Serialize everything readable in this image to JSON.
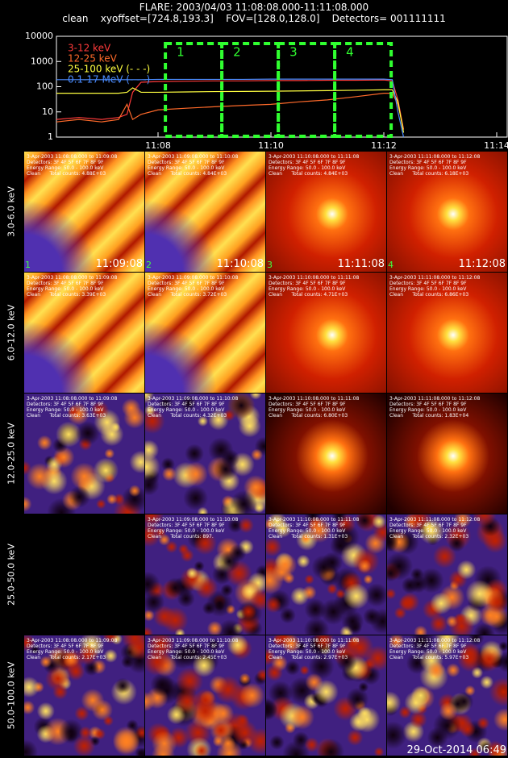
{
  "header": {
    "line1": "FLARE: 2003/04/03 11:08:08.000-11:11:08.000",
    "line2": "clean    xyoffset=[724.8,193.3]    FOV=[128.0,128.0]    Detectors= 001111111"
  },
  "chart_data": {
    "type": "line",
    "log_y": true,
    "x": [
      6.2,
      6.6,
      7.0,
      7.3,
      7.45,
      7.55,
      7.7,
      8.0,
      8.5,
      9.0,
      9.5,
      10.0,
      10.5,
      11.0,
      11.5,
      12.0,
      12.15,
      12.25,
      12.35
    ],
    "xlim": [
      6.2,
      14.2
    ],
    "xticks": [
      {
        "value": 8,
        "label": "11:08"
      },
      {
        "value": 10,
        "label": "11:10"
      },
      {
        "value": 12,
        "label": "11:12"
      },
      {
        "value": 14,
        "label": "11:14"
      }
    ],
    "ylim": [
      1,
      10000
    ],
    "yticks": [
      1,
      10,
      100,
      1000,
      10000
    ],
    "series": [
      {
        "name": "3-12 keV",
        "color": "#ff3a3a",
        "values": [
          5,
          6,
          5,
          6,
          8,
          60,
          150,
          160,
          165,
          170,
          170,
          175,
          175,
          180,
          180,
          185,
          170,
          30,
          2
        ]
      },
      {
        "name": "12-25 keV",
        "color": "#ff6a2a",
        "values": [
          4,
          5,
          4,
          5,
          20,
          5,
          8,
          12,
          14,
          16,
          18,
          20,
          25,
          30,
          40,
          55,
          55,
          20,
          2
        ]
      },
      {
        "name": "25-100 keV (- - -)",
        "color": "#ffff40",
        "values": [
          55,
          55,
          55,
          55,
          60,
          90,
          60,
          60,
          62,
          64,
          65,
          66,
          68,
          70,
          72,
          75,
          75,
          25,
          1.5
        ]
      },
      {
        "name": "0.1-17 MeV (- - -)",
        "color": "#4a8cff",
        "values": [
          190,
          190,
          190,
          190,
          190,
          190,
          190,
          195,
          195,
          195,
          195,
          200,
          200,
          200,
          200,
          200,
          190,
          10,
          1
        ]
      }
    ],
    "intervals": [
      {
        "label": "1",
        "start": 8.13,
        "end": 9.13
      },
      {
        "label": "2",
        "start": 9.13,
        "end": 10.13
      },
      {
        "label": "3",
        "start": 10.13,
        "end": 11.13
      },
      {
        "label": "4",
        "start": 11.13,
        "end": 12.13
      }
    ]
  },
  "panels": [
    {
      "label": "3.0-6.0 keV",
      "cells": [
        {
          "lines": [
            "3-Apr-2003 11:08:08.000 to 11:09:08",
            "Detectors: 3F 4F 5F 6F 7F 8F 9F",
            "Energy Range: 50.0 - 100.0 keV",
            "Clean      Total counts: 4.88E+03"
          ],
          "time": "11:09:08",
          "index": "1"
        },
        {
          "lines": [
            "3-Apr-2003 11:09:08.000 to 11:10:08",
            "Detectors: 3F 4F 5F 6F 7F 8F 9F",
            "Energy Range: 50.0 - 100.0 keV",
            "Clean      Total counts: 4.84E+03"
          ],
          "time": "11:10:08",
          "index": "2"
        },
        {
          "lines": [
            "3-Apr-2003 11:10:08.000 to 11:11:08",
            "Detectors: 3F 4F 5F 6F 7F 8F 9F",
            "Energy Range: 50.0 - 100.0 keV",
            "Clean      Total counts: 4.84E+03"
          ],
          "time": "11:11:08",
          "index": "3"
        },
        {
          "lines": [
            "3-Apr-2003 11:11:08.000 to 11:12:08",
            "Detectors: 3F 4F 5F 6F 7F 8F 9F",
            "Energy Range: 50.0 - 100.0 keV",
            "Clean      Total counts: 6.18E+03"
          ],
          "time": "11:12:08",
          "index": "4"
        }
      ]
    },
    {
      "label": "6.0-12.0 keV",
      "cells": [
        {
          "lines": [
            "3-Apr-2003 11:08:08.000 to 11:09:08",
            "Detectors: 3F 4F 5F 6F 7F 8F 9F",
            "Energy Range: 50.0 - 100.0 keV",
            "Clean      Total counts: 3.39E+03"
          ]
        },
        {
          "lines": [
            "3-Apr-2003 11:09:08.000 to 11:10:08",
            "Detectors: 3F 4F 5F 6F 7F 8F 9F",
            "Energy Range: 50.0 - 100.0 keV",
            "Clean      Total counts: 3.72E+03"
          ]
        },
        {
          "lines": [
            "3-Apr-2003 11:10:08.000 to 11:11:08",
            "Detectors: 3F 4F 5F 6F 7F 8F 9F",
            "Energy Range: 50.0 - 100.0 keV",
            "Clean      Total counts: 4.71E+03"
          ]
        },
        {
          "lines": [
            "3-Apr-2003 11:11:08.000 to 11:12:08",
            "Detectors: 3F 4F 5F 6F 7F 8F 9F",
            "Energy Range: 50.0 - 100.0 keV",
            "Clean      Total counts: 6.86E+03"
          ]
        }
      ]
    },
    {
      "label": "12.0-25.0 keV",
      "cells": [
        {
          "lines": [
            "3-Apr-2003 11:08:08.000 to 11:09:08",
            "Detectors: 3F 4F 5F 6F 7F 8F 9F",
            "Energy Range: 50.0 - 100.0 keV",
            "Clean      Total counts: 3.63E+03"
          ]
        },
        {
          "lines": [
            "3-Apr-2003 11:09:08.000 to 11:10:08",
            "Detectors: 3F 4F 5F 6F 7F 8F 9F",
            "Energy Range: 50.0 - 100.0 keV",
            "Clean      Total counts: 4.32E+03"
          ]
        },
        {
          "lines": [
            "3-Apr-2003 11:10:08.000 to 11:11:08",
            "Detectors: 3F 4F 5F 6F 7F 8F 9F",
            "Energy Range: 50.0 - 100.0 keV",
            "Clean      Total counts: 6.80E+03"
          ]
        },
        {
          "lines": [
            "3-Apr-2003 11:11:08.000 to 11:12:08",
            "Detectors: 3F 4F 5F 6F 7F 8F 9F",
            "Energy Range: 50.0 - 100.0 keV",
            "Clean      Total counts: 1.83E+04"
          ]
        }
      ]
    },
    {
      "label": "25.0-50.0 keV",
      "cells": [
        null,
        {
          "lines": [
            "3-Apr-2003 11:09:08.000 to 11:10:08",
            "Detectors: 3F 4F 5F 6F 7F 8F 9F",
            "Energy Range: 50.0 - 100.0 keV",
            "Clean      Total counts: 897."
          ]
        },
        {
          "lines": [
            "3-Apr-2003 11:10:08.000 to 11:11:08",
            "Detectors: 3F 4F 5F 6F 7F 8F 9F",
            "Energy Range: 50.0 - 100.0 keV",
            "Clean      Total counts: 1.31E+03"
          ]
        },
        {
          "lines": [
            "3-Apr-2003 11:11:08.000 to 11:12:08",
            "Detectors: 3F 4F 5F 6F 7F 8F 9F",
            "Energy Range: 50.0 - 100.0 keV",
            "Clean      Total counts: 2.32E+03"
          ]
        }
      ]
    },
    {
      "label": "50.0-100.0 keV",
      "cells": [
        {
          "lines": [
            "3-Apr-2003 11:08:08.000 to 11:09:08",
            "Detectors: 3F 4F 5F 6F 7F 8F 9F",
            "Energy Range: 50.0 - 100.0 keV",
            "Clean      Total counts: 2.17E+03"
          ]
        },
        {
          "lines": [
            "3-Apr-2003 11:09:08.000 to 11:10:08",
            "Detectors: 3F 4F 5F 6F 7F 8F 9F",
            "Energy Range: 50.0 - 100.0 keV",
            "Clean      Total counts: 2.45E+03"
          ]
        },
        {
          "lines": [
            "3-Apr-2003 11:10:08.000 to 11:11:08",
            "Detectors: 3F 4F 5F 6F 7F 8F 9F",
            "Energy Range: 50.0 - 100.0 keV",
            "Clean      Total counts: 2.97E+03"
          ]
        },
        {
          "lines": [
            "3-Apr-2003 11:11:08.000 to 11:12:08",
            "Detectors: 3F 4F 5F 6F 7F 8F 9F",
            "Energy Range: 50.0 - 100.0 keV",
            "Clean      Total counts: 5.97E+03"
          ]
        }
      ]
    }
  ],
  "footer": "29-Oct-2014 06:49"
}
